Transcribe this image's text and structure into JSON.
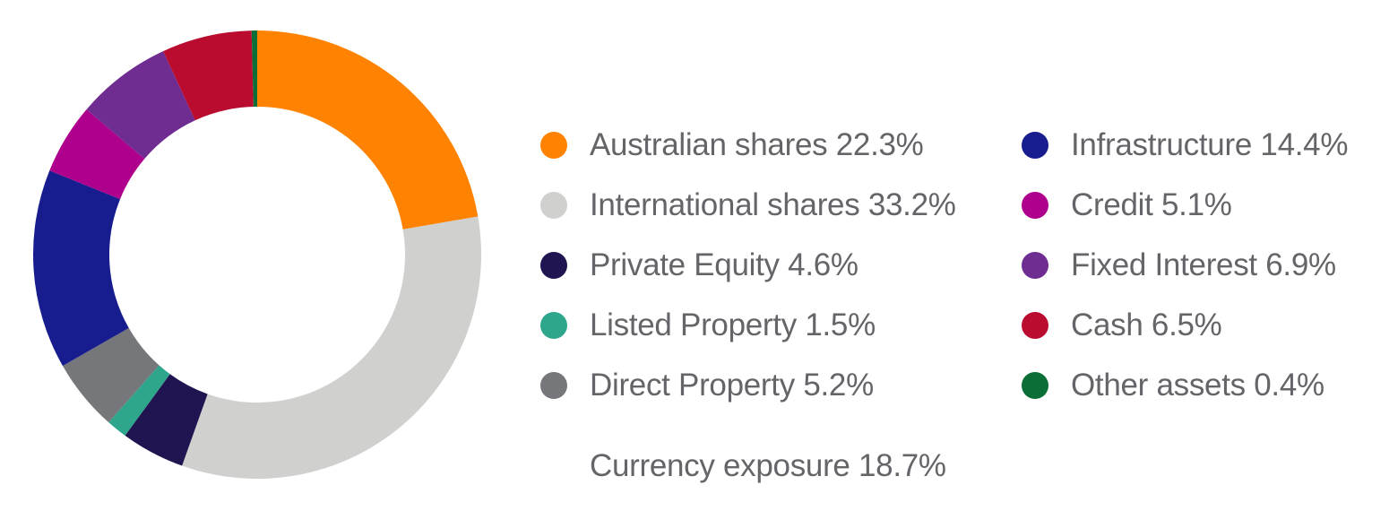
{
  "chart_data": {
    "type": "pie",
    "title": "",
    "slices": [
      {
        "label": "Australian shares",
        "value": 22.3,
        "text": "Australian shares 22.3%",
        "color": "#FF8300"
      },
      {
        "label": "International shares",
        "value": 33.2,
        "text": "International shares 33.2%",
        "color": "#D0D0CE"
      },
      {
        "label": "Private Equity",
        "value": 4.6,
        "text": "Private Equity 4.6%",
        "color": "#211551"
      },
      {
        "label": "Listed Property",
        "value": 1.5,
        "text": "Listed Property 1.5%",
        "color": "#2EA68C"
      },
      {
        "label": "Direct Property",
        "value": 5.2,
        "text": "Direct Property 5.2%",
        "color": "#75777A"
      },
      {
        "label": "Infrastructure",
        "value": 14.4,
        "text": "Infrastructure 14.4%",
        "color": "#171C8F"
      },
      {
        "label": "Credit",
        "value": 5.1,
        "text": "Credit 5.1%",
        "color": "#AE008C"
      },
      {
        "label": "Fixed Interest",
        "value": 6.9,
        "text": "Fixed Interest 6.9%",
        "color": "#6F2C91"
      },
      {
        "label": "Cash",
        "value": 6.5,
        "text": "Cash 6.5%",
        "color": "#BA0C2F"
      },
      {
        "label": "Other assets",
        "value": 0.4,
        "text": "Other assets 0.4%",
        "color": "#0B6E37"
      }
    ],
    "legend_position": "right",
    "note": "Currency exposure 18.7%"
  }
}
